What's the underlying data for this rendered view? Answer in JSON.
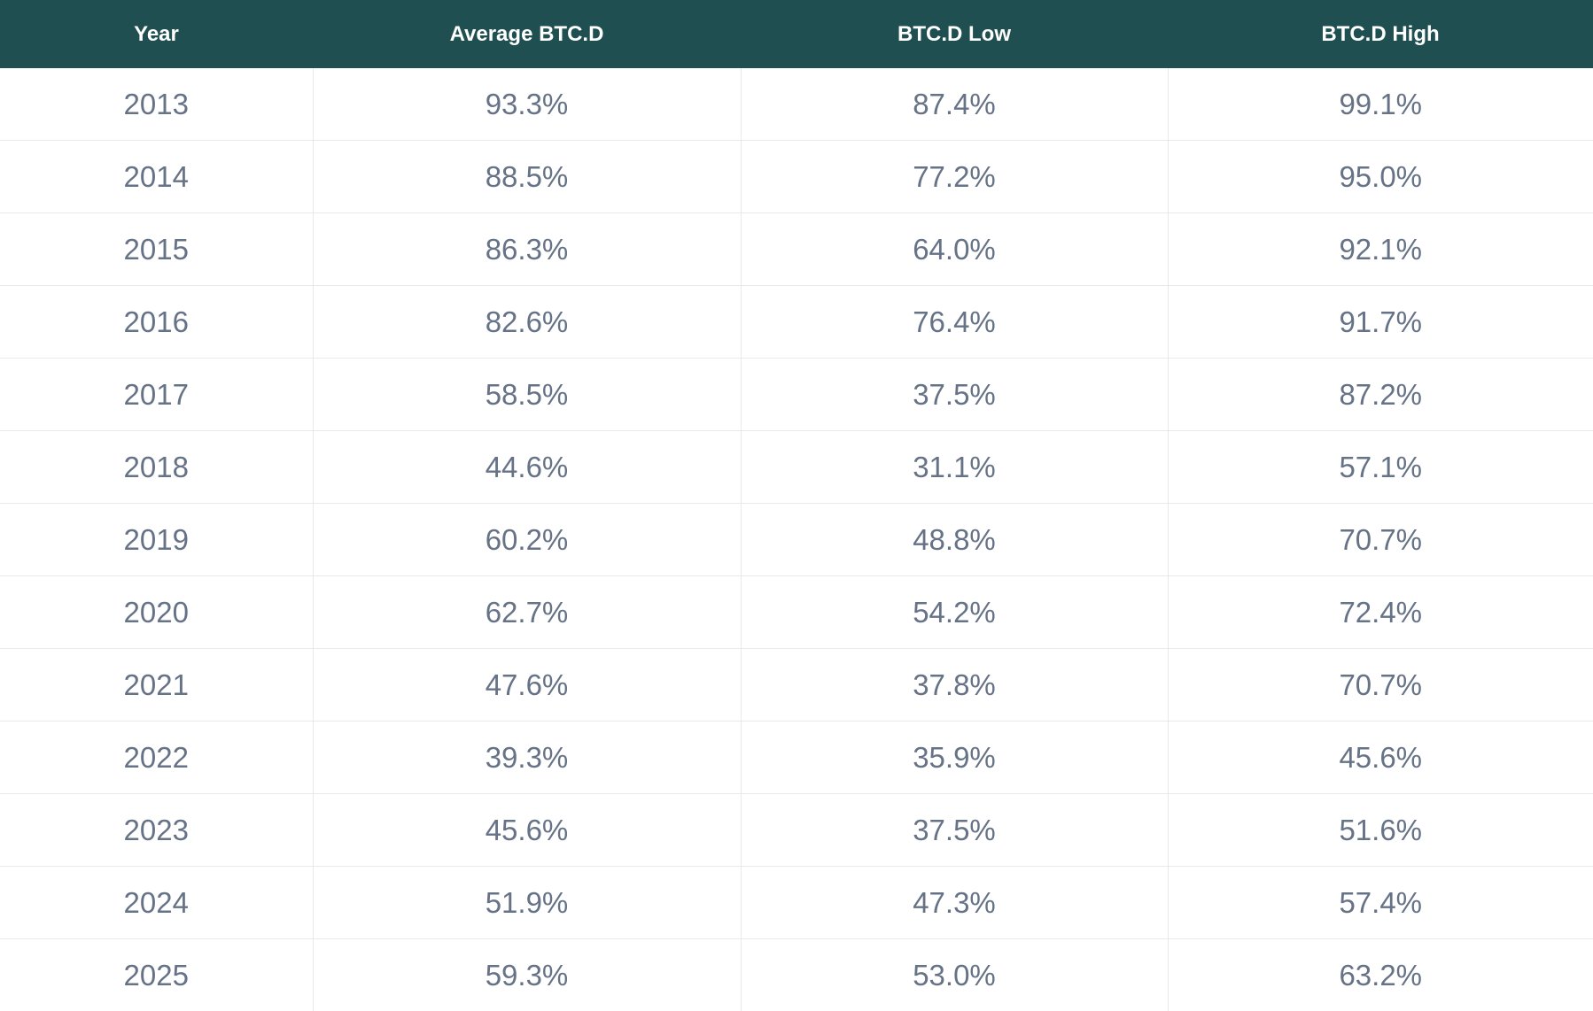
{
  "table": {
    "headers": [
      "Year",
      "Average BTC.D",
      "BTC.D Low",
      "BTC.D High"
    ],
    "rows": [
      [
        "2013",
        "93.3%",
        "87.4%",
        "99.1%"
      ],
      [
        "2014",
        "88.5%",
        "77.2%",
        "95.0%"
      ],
      [
        "2015",
        "86.3%",
        "64.0%",
        "92.1%"
      ],
      [
        "2016",
        "82.6%",
        "76.4%",
        "91.7%"
      ],
      [
        "2017",
        "58.5%",
        "37.5%",
        "87.2%"
      ],
      [
        "2018",
        "44.6%",
        "31.1%",
        "57.1%"
      ],
      [
        "2019",
        "60.2%",
        "48.8%",
        "70.7%"
      ],
      [
        "2020",
        "62.7%",
        "54.2%",
        "72.4%"
      ],
      [
        "2021",
        "47.6%",
        "37.8%",
        "70.7%"
      ],
      [
        "2022",
        "39.3%",
        "35.9%",
        "45.6%"
      ],
      [
        "2023",
        "45.6%",
        "37.5%",
        "51.6%"
      ],
      [
        "2024",
        "51.9%",
        "47.3%",
        "57.4%"
      ],
      [
        "2025",
        "59.3%",
        "53.0%",
        "63.2%"
      ]
    ]
  },
  "colors": {
    "header_background": "#1f4f50",
    "header_text": "#ffffff",
    "cell_text": "#667286",
    "grid_line": "#e7e9ec"
  }
}
